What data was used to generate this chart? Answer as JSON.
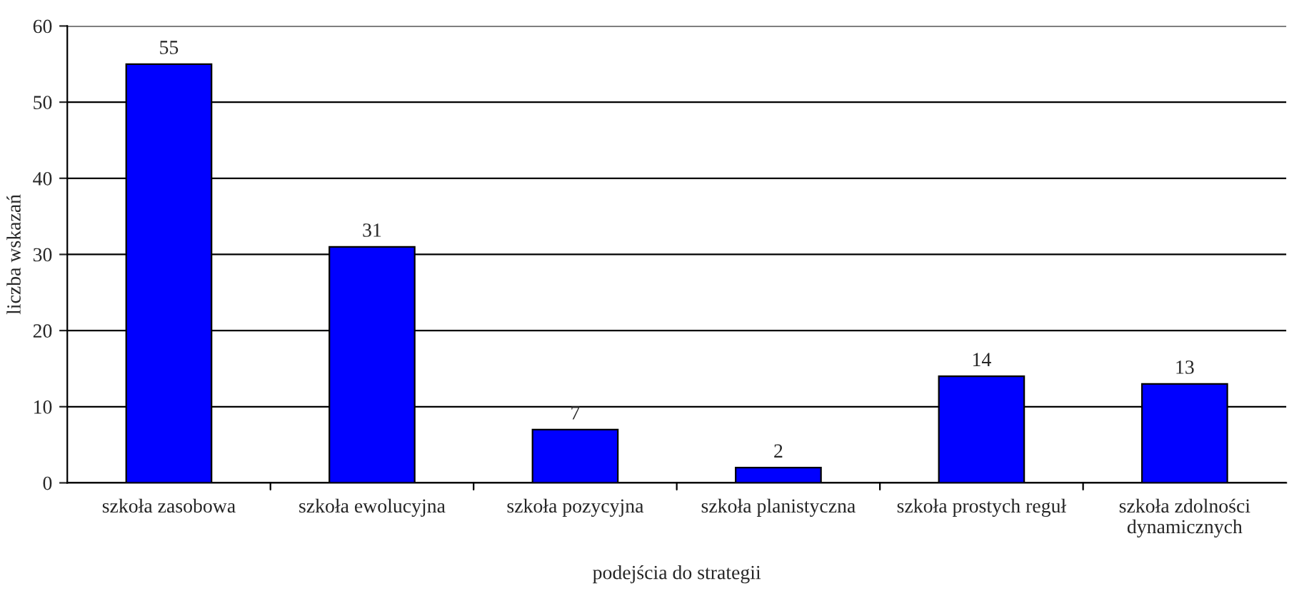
{
  "chart_data": {
    "type": "bar",
    "xlabel": "podejścia do strategii",
    "ylabel": "liczba wskazań",
    "categories": [
      "szkoła zasobowa",
      "szkoła ewolucyjna",
      "szkoła pozycyjna",
      "szkoła planistyczna",
      "szkoła prostych reguł",
      "szkoła zdolności\ndynamicznych"
    ],
    "values": [
      55,
      31,
      7,
      2,
      14,
      13
    ],
    "color": "#0000ff",
    "ylim": [
      0,
      60
    ],
    "yticks": [
      0,
      10,
      20,
      30,
      40,
      50,
      60
    ],
    "grid": "y",
    "data_labels": true
  }
}
